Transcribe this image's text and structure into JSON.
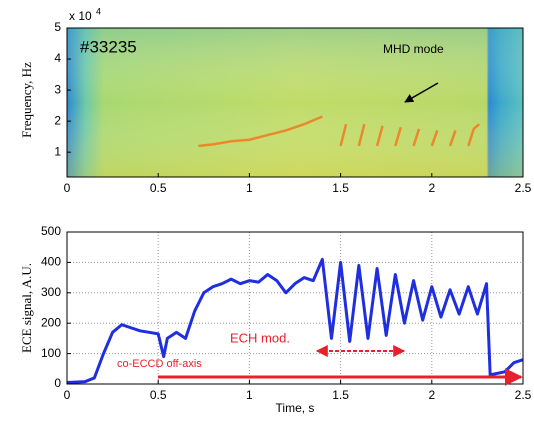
{
  "chart_data": [
    {
      "type": "spectrogram",
      "y_label": "Frequency, Hz",
      "y_multiplier": "x 10",
      "y_multiplier_exponent": "4",
      "annotations": [
        "#33235",
        "MHD mode"
      ],
      "xlim": [
        0,
        2.5
      ],
      "xticks": [
        0,
        0.5,
        1,
        1.5,
        2,
        2.5
      ],
      "ylim": [
        2000,
        50000
      ],
      "yticks": [
        {
          "value": 10000,
          "label": "1"
        },
        {
          "value": 20000,
          "label": "2"
        },
        {
          "value": 30000,
          "label": "3"
        },
        {
          "value": 40000,
          "label": "4"
        },
        {
          "value": 50000,
          "label": "5"
        }
      ],
      "grid": false,
      "color": "#f07a1e",
      "x": [
        0.72,
        0.8,
        0.9,
        1.0,
        1.1,
        1.2,
        1.3,
        1.4,
        1.42,
        1.5,
        1.53,
        1.56,
        1.6,
        1.63,
        1.66,
        1.7,
        1.73,
        1.76,
        1.8,
        1.83,
        1.86,
        1.9,
        1.93,
        1.96,
        2.0,
        2.03,
        2.06,
        2.1,
        2.13,
        2.16,
        2.2,
        2.23,
        2.26,
        2.28
      ],
      "values": [
        12000,
        12500,
        13500,
        14000,
        15500,
        17000,
        19000,
        21500,
        null,
        12000,
        19000,
        null,
        12000,
        19000,
        null,
        12000,
        18500,
        null,
        12000,
        18000,
        null,
        12000,
        17500,
        null,
        12000,
        17000,
        null,
        12000,
        17000,
        null,
        12000,
        17500,
        19000,
        null
      ]
    },
    {
      "type": "line",
      "x_label": "Time, s",
      "y_label": "ECE signal, A.U.",
      "annotations": [
        "ECH mod.",
        "co-ECCD off-axis"
      ],
      "xlim": [
        0,
        2.5
      ],
      "xticks": [
        0,
        0.5,
        1,
        1.5,
        2,
        2.5
      ],
      "ylim": [
        0,
        500
      ],
      "yticks": [
        0,
        100,
        200,
        300,
        400,
        500
      ],
      "grid": true,
      "color": "#1f2fe0",
      "x": [
        0,
        0.1,
        0.15,
        0.2,
        0.25,
        0.3,
        0.35,
        0.4,
        0.45,
        0.5,
        0.53,
        0.55,
        0.6,
        0.65,
        0.7,
        0.75,
        0.8,
        0.85,
        0.9,
        0.95,
        1.0,
        1.05,
        1.1,
        1.15,
        1.2,
        1.25,
        1.3,
        1.35,
        1.4,
        1.45,
        1.5,
        1.55,
        1.6,
        1.65,
        1.7,
        1.75,
        1.8,
        1.85,
        1.9,
        1.95,
        2.0,
        2.05,
        2.1,
        2.15,
        2.2,
        2.25,
        2.3,
        2.32,
        2.4,
        2.45,
        2.5
      ],
      "values": [
        5,
        8,
        20,
        100,
        170,
        195,
        185,
        175,
        170,
        165,
        90,
        150,
        170,
        150,
        240,
        300,
        320,
        330,
        345,
        330,
        340,
        335,
        360,
        340,
        300,
        330,
        350,
        340,
        410,
        150,
        400,
        140,
        390,
        150,
        380,
        160,
        360,
        200,
        340,
        210,
        320,
        220,
        310,
        230,
        320,
        230,
        330,
        30,
        40,
        70,
        80
      ]
    }
  ]
}
